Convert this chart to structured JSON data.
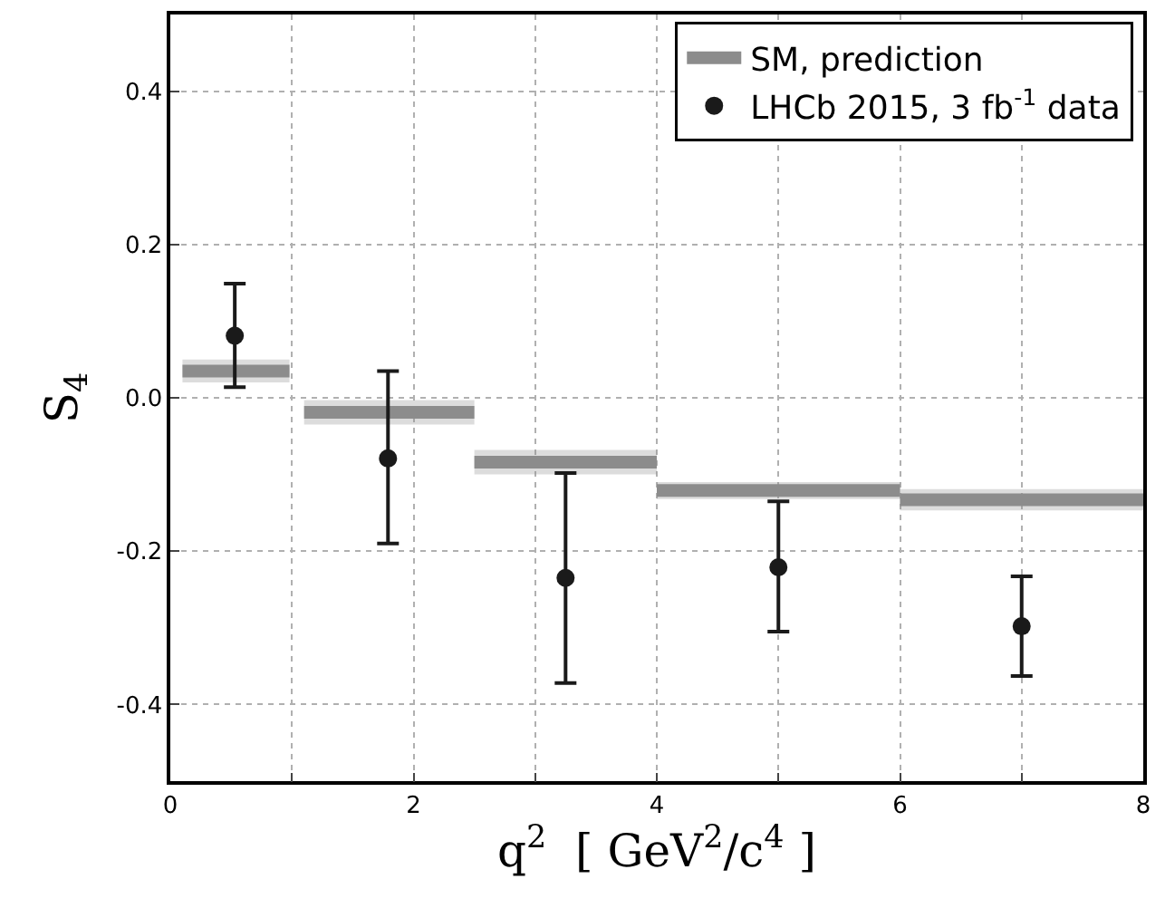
{
  "chart_data": {
    "type": "line",
    "xlabel": "q$^{2}$  [ GeV$^{2}$/c$^{4}$ ]",
    "ylabel": "S$_{4}$",
    "series": [
      {
        "name": "SM, prediction",
        "color": "#8c8c8c",
        "x": [
          0.1,
          0.98
        ],
        "values": [
          0.035,
          0.035
        ],
        "lower": [
          0.02,
          0.02
        ],
        "upper": [
          0.05,
          0.05
        ]
      },
      {
        "color": "#8c8c8c",
        "x": [
          1.1,
          2.5
        ],
        "values": [
          -0.019,
          -0.019
        ],
        "lower": [
          -0.035,
          -0.035
        ],
        "upper": [
          -0.003,
          -0.003
        ]
      },
      {
        "color": "#8c8c8c",
        "x": [
          2.5,
          4
        ],
        "values": [
          -0.084,
          -0.084
        ],
        "lower": [
          -0.1,
          -0.1
        ],
        "upper": [
          -0.068,
          -0.068
        ]
      },
      {
        "color": "#8c8c8c",
        "x": [
          4,
          6
        ],
        "values": [
          -0.121,
          -0.121
        ],
        "lower": [
          -0.132,
          -0.132
        ],
        "upper": [
          -0.11,
          -0.11
        ]
      },
      {
        "color": "#8c8c8c",
        "x": [
          6,
          8
        ],
        "values": [
          -0.133,
          -0.133
        ],
        "lower": [
          -0.147,
          -0.147
        ],
        "upper": [
          -0.119,
          -0.119
        ]
      },
      {
        "name": "LHCb 2015, 3 fb$^{-1}$ data",
        "type": "scatter",
        "color": "#1a1a1a",
        "marker": "circle",
        "x": [
          0.53,
          1.79,
          3.25,
          5.0,
          7.0
        ],
        "values": [
          0.081,
          -0.079,
          -0.235,
          -0.221,
          -0.298
        ],
        "errors": [
          [
            0.014,
            0.149
          ],
          [
            -0.19,
            0.035
          ],
          [
            -0.372,
            -0.098
          ],
          [
            -0.305,
            -0.135
          ],
          [
            -0.363,
            -0.233
          ]
        ]
      }
    ],
    "xlim": [
      0,
      8
    ],
    "xticks": [
      0,
      {
        "value": 1,
        "label": null
      },
      2,
      {
        "value": 3,
        "label": null
      },
      4,
      {
        "value": 5,
        "label": null
      },
      6,
      {
        "value": 7,
        "label": null
      },
      8
    ],
    "ylim": [
      -0.5,
      0.5
    ],
    "yticks": [
      {
        "value": -0.4,
        "label": "-0.4"
      },
      {
        "value": -0.2,
        "label": "-0.2"
      },
      {
        "value": 0,
        "label": "0.0"
      },
      0.2,
      0.4
    ],
    "grid": true,
    "legend": "top right"
  }
}
